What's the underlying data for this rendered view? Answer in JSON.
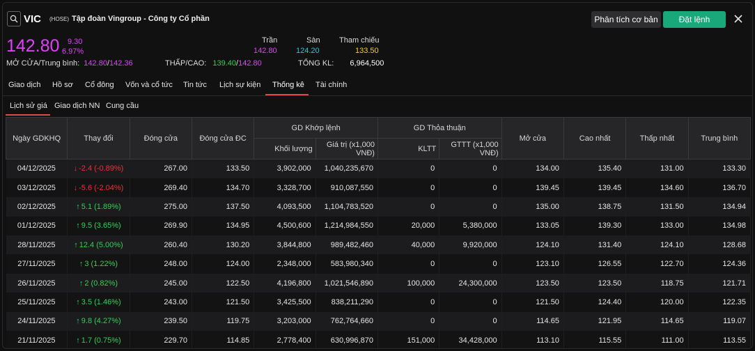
{
  "header": {
    "symbol": "VIC",
    "exchange": "(HOSE)",
    "company": "Tập đoàn Vingroup - Công ty Cổ phần",
    "btn_analysis": "Phân tích cơ bản",
    "btn_order": "Đặt lệnh"
  },
  "quote": {
    "price": "142.80",
    "change": "9.30",
    "change_pct": "6.97%",
    "ceiling_label": "Trần",
    "floor_label": "Sàn",
    "ref_label": "Tham chiếu",
    "ceiling": "142.80",
    "floor": "124.20",
    "ref": "133.50",
    "open_avg_label": "MỞ CỬA/Trung bình:",
    "open": "142.80",
    "avg": "142.36",
    "low_high_label": "THẤP/CAO:",
    "low": "139.40",
    "high": "142.80",
    "total_vol_label": "TỔNG KL:",
    "total_vol": "6,964,500",
    "sep": "/"
  },
  "colors": {
    "ceiling": "#e040fb",
    "floor": "#26c6da",
    "ref": "#f2d21b",
    "up": "#2ed158",
    "down": "#f0303a",
    "accent": "#18a87a"
  },
  "tabs": [
    "Giao dịch",
    "Hồ sơ",
    "Cổ đông",
    "Vốn và cổ tức",
    "Tin tức",
    "Lịch sự kiện",
    "Thống kê",
    "Tài chính"
  ],
  "active_tab": "Thống kê",
  "subtabs": [
    "Lịch sử giá",
    "Giao dịch NN",
    "Cung cầu"
  ],
  "active_subtab": "Lịch sử giá",
  "table": {
    "headers": {
      "date": "Ngày GDKHQ",
      "change": "Thay đổi",
      "close": "Đóng cửa",
      "adj_close": "Đóng cửa ĐC",
      "matched": "GD Khớp lệnh",
      "matched_vol": "Khối lượng",
      "matched_val": "Giá trị (x1,000 VNĐ)",
      "negotiated": "GD Thỏa thuận",
      "neg_vol": "KLTT",
      "neg_val": "GTTT (x1,000 VNĐ)",
      "open": "Mở cửa",
      "high": "Cao nhất",
      "low": "Thấp nhất",
      "avg": "Trung bình"
    },
    "rows": [
      {
        "date": "04/12/2025",
        "dir": "down",
        "change": "-2.4 (-0.89%)",
        "close": "267.00",
        "adj_close": "133.50",
        "matched_vol": "3,902,000",
        "matched_val": "1,040,235,670",
        "neg_vol": "0",
        "neg_val": "0",
        "open": "134.00",
        "high": "135.40",
        "low": "131.00",
        "avg": "133.30"
      },
      {
        "date": "03/12/2025",
        "dir": "down",
        "change": "-5.6 (-2.04%)",
        "close": "269.40",
        "adj_close": "134.70",
        "matched_vol": "3,328,700",
        "matched_val": "910,087,550",
        "neg_vol": "0",
        "neg_val": "0",
        "open": "139.45",
        "high": "139.45",
        "low": "134.60",
        "avg": "136.70"
      },
      {
        "date": "02/12/2025",
        "dir": "up",
        "change": "5.1 (1.89%)",
        "close": "275.00",
        "adj_close": "137.50",
        "matched_vol": "4,093,500",
        "matched_val": "1,104,783,520",
        "neg_vol": "0",
        "neg_val": "0",
        "open": "135.00",
        "high": "138.75",
        "low": "131.50",
        "avg": "134.94"
      },
      {
        "date": "01/12/2025",
        "dir": "up",
        "change": "9.5 (3.65%)",
        "close": "269.90",
        "adj_close": "134.95",
        "matched_vol": "4,500,600",
        "matched_val": "1,214,984,550",
        "neg_vol": "20,000",
        "neg_val": "5,380,000",
        "open": "133.05",
        "high": "139.30",
        "low": "133.00",
        "avg": "134.98"
      },
      {
        "date": "28/11/2025",
        "dir": "up",
        "change": "12.4 (5.00%)",
        "close": "260.40",
        "adj_close": "130.20",
        "matched_vol": "3,844,800",
        "matched_val": "989,482,460",
        "neg_vol": "40,000",
        "neg_val": "9,920,000",
        "open": "124.10",
        "high": "131.40",
        "low": "124.10",
        "avg": "128.68"
      },
      {
        "date": "27/11/2025",
        "dir": "up",
        "change": "3 (1.22%)",
        "close": "248.00",
        "adj_close": "124.00",
        "matched_vol": "2,348,000",
        "matched_val": "583,980,340",
        "neg_vol": "0",
        "neg_val": "0",
        "open": "123.10",
        "high": "126.55",
        "low": "122.70",
        "avg": "124.36"
      },
      {
        "date": "26/11/2025",
        "dir": "up",
        "change": "2 (0.82%)",
        "close": "245.00",
        "adj_close": "122.50",
        "matched_vol": "4,196,800",
        "matched_val": "1,021,546,890",
        "neg_vol": "100,000",
        "neg_val": "24,300,000",
        "open": "123.50",
        "high": "123.50",
        "low": "118.75",
        "avg": "121.71"
      },
      {
        "date": "25/11/2025",
        "dir": "up",
        "change": "3.5 (1.46%)",
        "close": "243.00",
        "adj_close": "121.50",
        "matched_vol": "3,425,500",
        "matched_val": "838,211,290",
        "neg_vol": "0",
        "neg_val": "0",
        "open": "121.50",
        "high": "124.40",
        "low": "120.00",
        "avg": "122.35"
      },
      {
        "date": "24/11/2025",
        "dir": "up",
        "change": "9.8 (4.27%)",
        "close": "239.50",
        "adj_close": "119.75",
        "matched_vol": "3,203,000",
        "matched_val": "762,764,660",
        "neg_vol": "0",
        "neg_val": "0",
        "open": "114.65",
        "high": "121.95",
        "low": "114.65",
        "avg": "119.07"
      },
      {
        "date": "21/11/2025",
        "dir": "up",
        "change": "1.7 (0.75%)",
        "close": "229.70",
        "adj_close": "114.85",
        "matched_vol": "2,778,400",
        "matched_val": "630,996,870",
        "neg_vol": "151,000",
        "neg_val": "34,428,000",
        "open": "113.10",
        "high": "115.55",
        "low": "111.00",
        "avg": "113.55"
      }
    ]
  }
}
